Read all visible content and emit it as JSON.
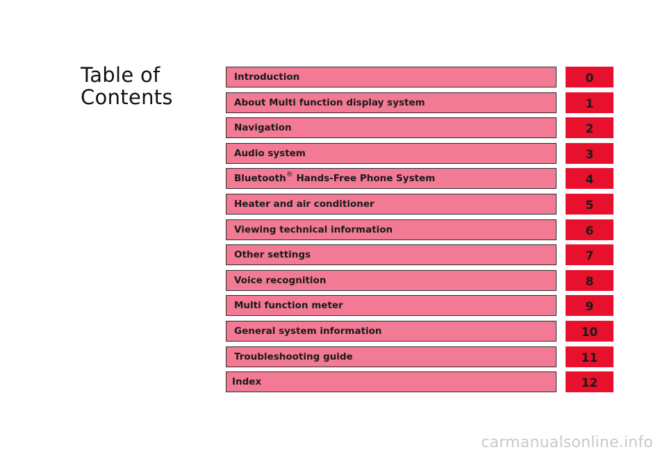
{
  "title": {
    "line1": "Table of",
    "line2": "Contents"
  },
  "toc": [
    {
      "label": "Introduction",
      "number": "0"
    },
    {
      "label": "About Multi function display system",
      "number": "1"
    },
    {
      "label": "Navigation",
      "number": "2"
    },
    {
      "label": "Audio system",
      "number": "3"
    },
    {
      "label": "Bluetooth",
      "label_sup": "®",
      "label_rest": " Hands-Free Phone System",
      "number": "4"
    },
    {
      "label": "Heater and air conditioner",
      "number": "5"
    },
    {
      "label": "Viewing technical information",
      "number": "6"
    },
    {
      "label": "Other settings",
      "number": "7"
    },
    {
      "label": "Voice recognition",
      "number": "8"
    },
    {
      "label": "Multi function meter",
      "number": "9"
    },
    {
      "label": "General system information",
      "number": "10"
    },
    {
      "label": "Troubleshooting guide",
      "number": "11"
    },
    {
      "label": "Index",
      "number": "12"
    }
  ],
  "watermark": "carmanualsonline.info",
  "colors": {
    "bar": "#f27a94",
    "tab": "#e8112d",
    "border": "#2b2b2b"
  }
}
